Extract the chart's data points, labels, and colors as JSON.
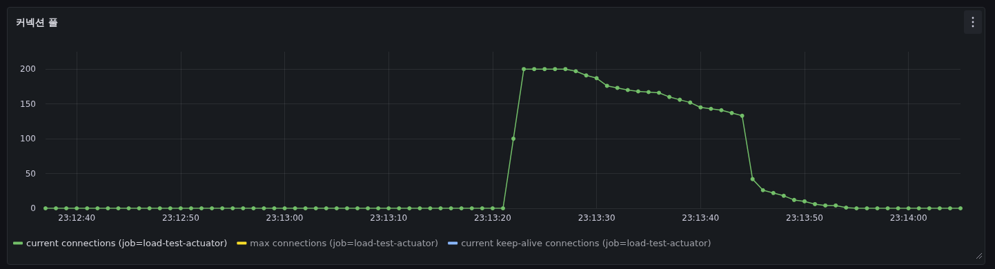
{
  "chart_data": {
    "type": "line",
    "title": "커넥션 풀",
    "categories": [
      null,
      null,
      null,
      "23:12:40",
      null,
      null,
      null,
      null,
      null,
      null,
      null,
      null,
      null,
      "23:12:50",
      null,
      null,
      null,
      null,
      null,
      null,
      null,
      null,
      null,
      "23:13:00",
      null,
      null,
      null,
      null,
      null,
      null,
      null,
      null,
      null,
      "23:13:10",
      null,
      null,
      null,
      null,
      null,
      null,
      null,
      null,
      null,
      "23:13:20",
      null,
      null,
      null,
      null,
      null,
      null,
      null,
      null,
      null,
      "23:13:30",
      null,
      null,
      null,
      null,
      null,
      null,
      null,
      null,
      null,
      "23:13:40",
      null,
      null,
      null,
      null,
      null,
      null,
      null,
      null,
      null,
      "23:13:50",
      null,
      null,
      null,
      null,
      null,
      null,
      null,
      null,
      null,
      "23:14:00",
      null,
      null,
      null,
      null,
      null
    ],
    "series": [
      {
        "name": "current connections (job=load-test-actuator)",
        "color": "#73bf69",
        "values": [
          0,
          0,
          0,
          0,
          0,
          0,
          0,
          0,
          0,
          0,
          0,
          0,
          0,
          0,
          0,
          0,
          0,
          0,
          0,
          0,
          0,
          0,
          0,
          0,
          0,
          0,
          0,
          0,
          0,
          0,
          0,
          0,
          0,
          0,
          0,
          0,
          0,
          0,
          0,
          0,
          0,
          0,
          0,
          0,
          0,
          100,
          200,
          200,
          200,
          200,
          200,
          197,
          191,
          187,
          176,
          173,
          170,
          168,
          167,
          166,
          160,
          156,
          152,
          145,
          143,
          141,
          137,
          133,
          42,
          26,
          22,
          18,
          12,
          10,
          6,
          4,
          4,
          1,
          0,
          0,
          0,
          0,
          0,
          0,
          0,
          0,
          0,
          0,
          0
        ]
      },
      {
        "name": "max connections (job=load-test-actuator)",
        "color": "#fade2a",
        "values": [
          null,
          null,
          null,
          null,
          null,
          null,
          null,
          null,
          null,
          null,
          null,
          null,
          null,
          null,
          null,
          null,
          null,
          null,
          null,
          null,
          null,
          null,
          null,
          null,
          null,
          null,
          null,
          null,
          null,
          null,
          null,
          null,
          null,
          null,
          null,
          null,
          null,
          null,
          null,
          null,
          null,
          null,
          null,
          null,
          null,
          null,
          null,
          null,
          null,
          null,
          null,
          null,
          null,
          null,
          null,
          null,
          null,
          null,
          null,
          null,
          null,
          null,
          null,
          null,
          null,
          null,
          null,
          null,
          null,
          null,
          null,
          null,
          null,
          null,
          null,
          null,
          null,
          null,
          null,
          null,
          null,
          null,
          null,
          null,
          null,
          null,
          null,
          null,
          null
        ]
      },
      {
        "name": "current keep-alive connections (job=load-test-actuator)",
        "color": "#8ab8ff",
        "values": [
          null,
          null,
          null,
          null,
          null,
          null,
          null,
          null,
          null,
          null,
          null,
          null,
          null,
          null,
          null,
          null,
          null,
          null,
          null,
          null,
          null,
          null,
          null,
          null,
          null,
          null,
          null,
          null,
          null,
          null,
          null,
          null,
          null,
          null,
          null,
          null,
          null,
          null,
          null,
          null,
          null,
          null,
          null,
          null,
          null,
          null,
          null,
          null,
          null,
          null,
          null,
          null,
          null,
          null,
          null,
          null,
          null,
          null,
          null,
          null,
          null,
          null,
          null,
          null,
          null,
          null,
          null,
          null,
          null,
          null,
          null,
          null,
          null,
          null,
          null,
          null,
          null,
          null,
          null,
          null,
          null,
          null,
          null,
          null,
          null,
          null,
          null,
          null,
          null
        ]
      }
    ],
    "ylim": [
      0,
      225
    ],
    "yticks": [
      0,
      50,
      100,
      150,
      200
    ],
    "grid": true,
    "legend": "bottom left",
    "marker": "circle",
    "line_style": "solid"
  }
}
